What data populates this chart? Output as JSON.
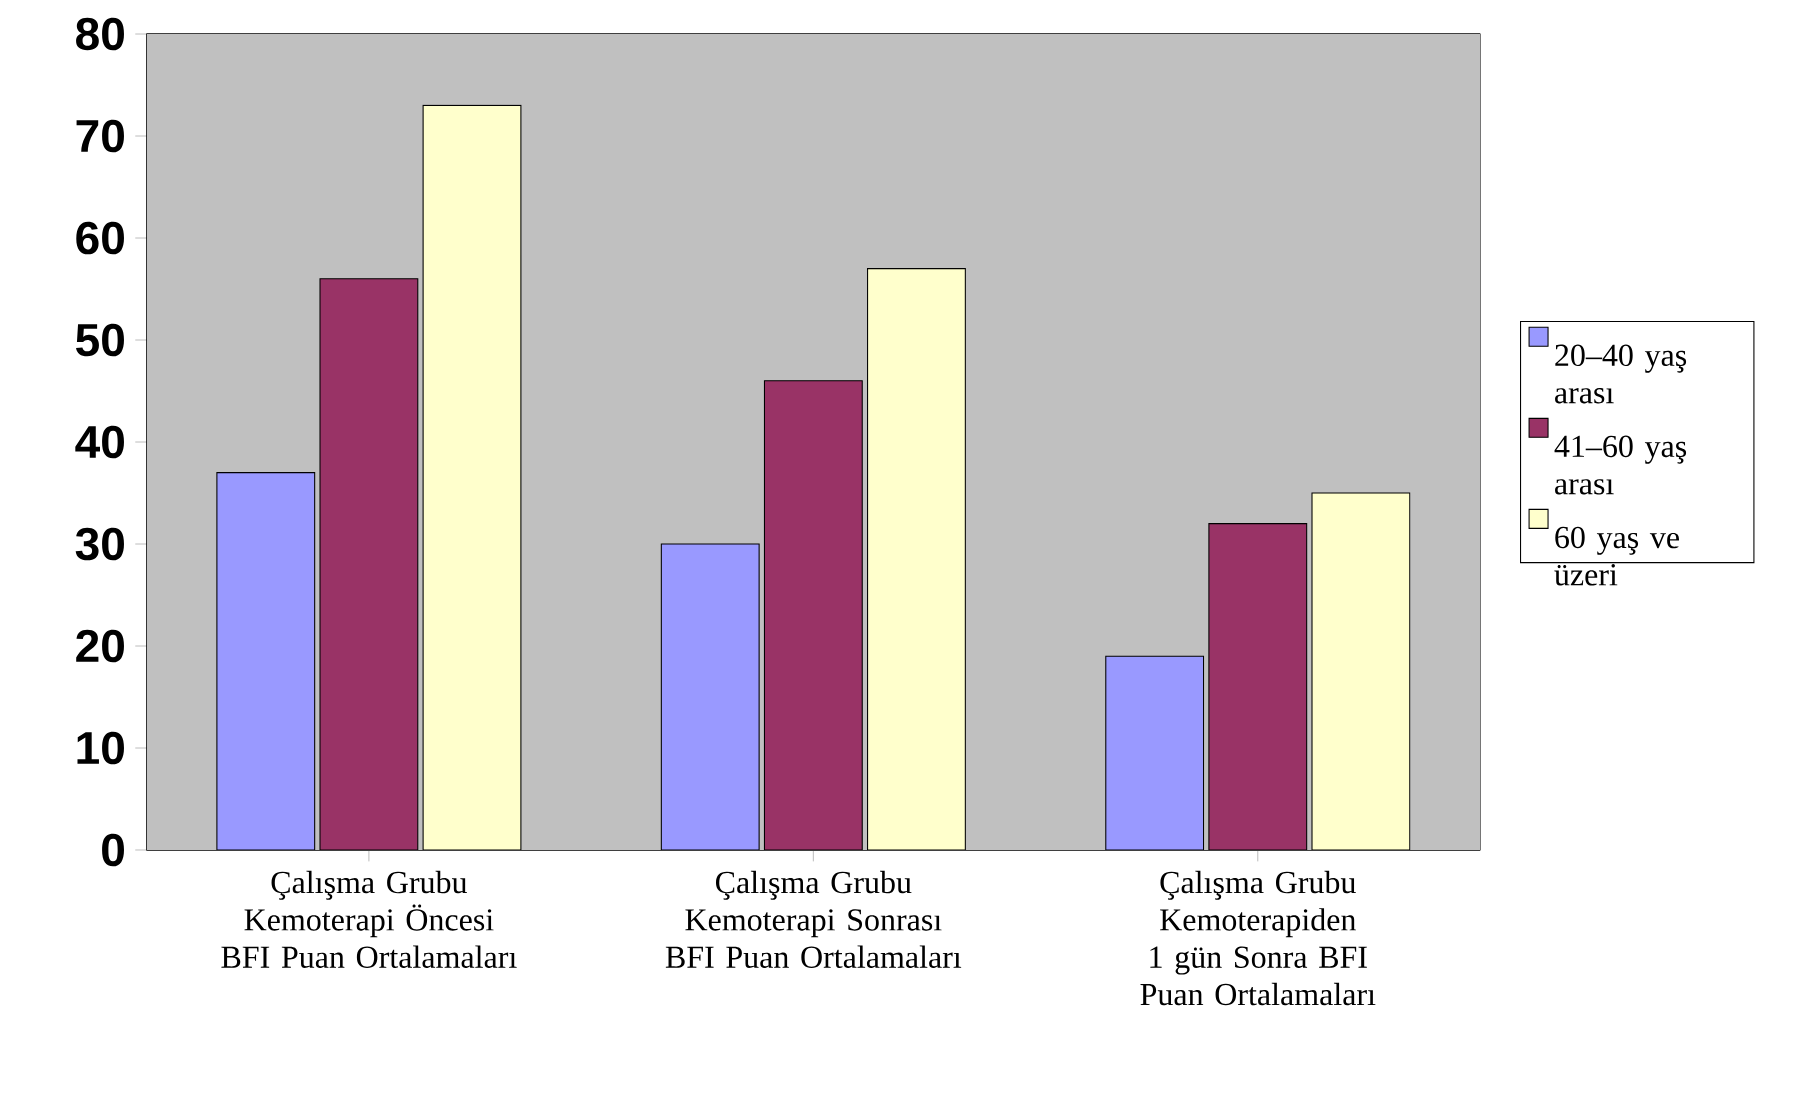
{
  "chart_data": {
    "type": "bar",
    "categories": [
      "Çalışma Grubu Kemoterapi Öncesi BFI Puan Ortalamaları",
      "Çalışma Grubu Kemoterapi Sonrası BFI Puan Ortalamaları",
      "Çalışma Grubu Kemoterapiden 1 gün Sonra BFI Puan Ortalamaları"
    ],
    "series": [
      {
        "name": "20–40 yaş arası",
        "color": "#9999ff",
        "values": [
          37,
          30,
          19
        ]
      },
      {
        "name": "41–60 yaş arası",
        "color": "#993366",
        "values": [
          56,
          46,
          32
        ]
      },
      {
        "name": "60 yaş ve üzeri",
        "color": "#ffffcc",
        "values": [
          73,
          57,
          35
        ]
      }
    ],
    "ylim": [
      0,
      80
    ],
    "yticks": [
      0,
      10,
      20,
      30,
      40,
      50,
      60,
      70,
      80
    ],
    "grid": "y",
    "legend": "right"
  }
}
